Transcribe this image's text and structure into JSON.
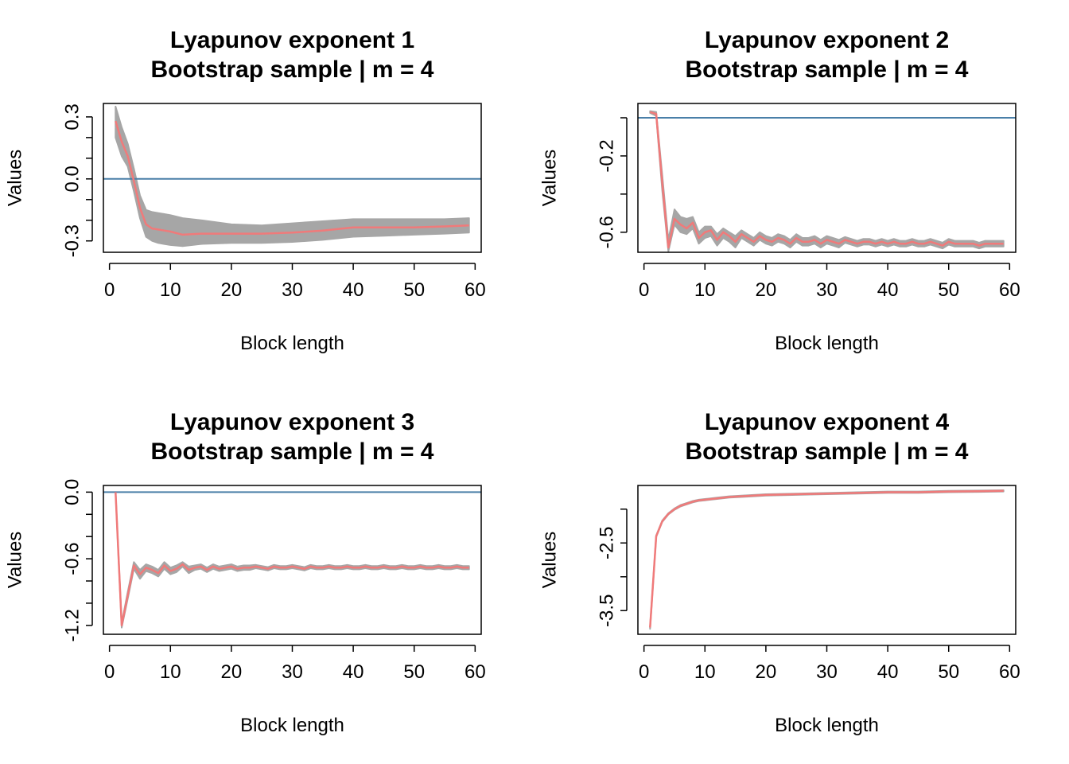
{
  "colors": {
    "bootstrap": "#a6a6a6",
    "estimate": "#f07a7a",
    "reference": "#4a7fa8",
    "frame": "#000000"
  },
  "chart_data": [
    {
      "type": "line",
      "title": "Lyapunov exponent 1",
      "subtitle": "Bootstrap sample | m = 4",
      "xlabel": "Block length",
      "ylabel": "Values",
      "xlim": [
        -1,
        61
      ],
      "ylim": [
        -0.355,
        0.365
      ],
      "xticks": [
        0,
        10,
        20,
        30,
        40,
        50,
        60
      ],
      "xtick_labels": [
        "0",
        "10",
        "20",
        "30",
        "40",
        "50",
        "60"
      ],
      "yticks": [
        -0.3,
        -0.2,
        -0.1,
        0.0,
        0.1,
        0.2,
        0.3
      ],
      "ytick_labels": [
        "-0.3",
        "",
        "",
        "0.0",
        "",
        "",
        "0.3"
      ],
      "hline": 0,
      "x": [
        1,
        2,
        3,
        4,
        5,
        6,
        7,
        8,
        9,
        10,
        12,
        15,
        20,
        25,
        30,
        35,
        40,
        45,
        50,
        55,
        59
      ],
      "series": [
        {
          "role": "estimate",
          "values": [
            0.28,
            0.18,
            0.11,
            -0.01,
            -0.14,
            -0.22,
            -0.24,
            -0.245,
            -0.25,
            -0.255,
            -0.27,
            -0.265,
            -0.265,
            -0.265,
            -0.26,
            -0.25,
            -0.235,
            -0.235,
            -0.235,
            -0.23,
            -0.225
          ]
        },
        {
          "role": "band-upper",
          "values": [
            0.35,
            0.25,
            0.17,
            0.05,
            -0.08,
            -0.15,
            -0.16,
            -0.165,
            -0.17,
            -0.175,
            -0.19,
            -0.2,
            -0.22,
            -0.225,
            -0.215,
            -0.205,
            -0.195,
            -0.195,
            -0.195,
            -0.195,
            -0.19
          ]
        },
        {
          "role": "band-lower",
          "values": [
            0.2,
            0.11,
            0.06,
            -0.06,
            -0.19,
            -0.28,
            -0.3,
            -0.31,
            -0.315,
            -0.32,
            -0.325,
            -0.315,
            -0.31,
            -0.31,
            -0.305,
            -0.295,
            -0.28,
            -0.275,
            -0.27,
            -0.265,
            -0.26
          ]
        }
      ]
    },
    {
      "type": "line",
      "title": "Lyapunov exponent 2",
      "subtitle": "Bootstrap sample | m = 4",
      "xlabel": "Block length",
      "ylabel": "Values",
      "xlim": [
        -1,
        61
      ],
      "ylim": [
        -0.705,
        0.075
      ],
      "xticks": [
        0,
        10,
        20,
        30,
        40,
        50,
        60
      ],
      "xtick_labels": [
        "0",
        "10",
        "20",
        "30",
        "40",
        "50",
        "60"
      ],
      "yticks": [
        -0.6,
        -0.4,
        -0.2,
        0.0
      ],
      "ytick_labels": [
        "-0.6",
        "",
        "-0.2",
        ""
      ],
      "hline": 0,
      "x": [
        1,
        2,
        3,
        4,
        5,
        6,
        7,
        8,
        9,
        10,
        11,
        12,
        13,
        14,
        15,
        16,
        17,
        18,
        19,
        20,
        21,
        22,
        23,
        24,
        25,
        26,
        27,
        28,
        29,
        30,
        31,
        32,
        33,
        34,
        35,
        36,
        37,
        38,
        39,
        40,
        41,
        42,
        43,
        44,
        45,
        46,
        47,
        48,
        49,
        50,
        51,
        52,
        53,
        54,
        55,
        56,
        57,
        58,
        59
      ],
      "series": [
        {
          "role": "estimate",
          "values": [
            0.03,
            0.02,
            -0.34,
            -0.68,
            -0.53,
            -0.56,
            -0.58,
            -0.55,
            -0.63,
            -0.6,
            -0.59,
            -0.64,
            -0.6,
            -0.62,
            -0.65,
            -0.61,
            -0.63,
            -0.65,
            -0.62,
            -0.64,
            -0.65,
            -0.63,
            -0.64,
            -0.66,
            -0.63,
            -0.65,
            -0.65,
            -0.64,
            -0.66,
            -0.64,
            -0.65,
            -0.66,
            -0.64,
            -0.65,
            -0.66,
            -0.65,
            -0.65,
            -0.66,
            -0.65,
            -0.66,
            -0.65,
            -0.66,
            -0.66,
            -0.65,
            -0.66,
            -0.66,
            -0.65,
            -0.66,
            -0.67,
            -0.65,
            -0.66,
            -0.66,
            -0.66,
            -0.66,
            -0.67,
            -0.66,
            -0.66,
            -0.66,
            -0.66
          ]
        },
        {
          "role": "band-upper",
          "values": [
            0.035,
            0.03,
            -0.3,
            -0.64,
            -0.48,
            -0.52,
            -0.53,
            -0.52,
            -0.6,
            -0.57,
            -0.57,
            -0.61,
            -0.58,
            -0.6,
            -0.62,
            -0.59,
            -0.61,
            -0.63,
            -0.6,
            -0.62,
            -0.63,
            -0.61,
            -0.62,
            -0.64,
            -0.61,
            -0.63,
            -0.63,
            -0.62,
            -0.64,
            -0.62,
            -0.63,
            -0.64,
            -0.625,
            -0.635,
            -0.645,
            -0.635,
            -0.635,
            -0.645,
            -0.635,
            -0.645,
            -0.635,
            -0.645,
            -0.645,
            -0.635,
            -0.645,
            -0.645,
            -0.635,
            -0.645,
            -0.655,
            -0.635,
            -0.645,
            -0.645,
            -0.645,
            -0.645,
            -0.655,
            -0.645,
            -0.645,
            -0.645,
            -0.645
          ]
        },
        {
          "role": "band-lower",
          "values": [
            0.025,
            0.01,
            -0.38,
            -0.7,
            -0.56,
            -0.6,
            -0.61,
            -0.58,
            -0.66,
            -0.63,
            -0.62,
            -0.67,
            -0.63,
            -0.65,
            -0.68,
            -0.63,
            -0.65,
            -0.67,
            -0.64,
            -0.66,
            -0.67,
            -0.65,
            -0.66,
            -0.68,
            -0.65,
            -0.67,
            -0.67,
            -0.66,
            -0.68,
            -0.66,
            -0.67,
            -0.68,
            -0.655,
            -0.665,
            -0.675,
            -0.665,
            -0.665,
            -0.675,
            -0.665,
            -0.675,
            -0.665,
            -0.675,
            -0.675,
            -0.665,
            -0.675,
            -0.675,
            -0.665,
            -0.675,
            -0.685,
            -0.665,
            -0.675,
            -0.675,
            -0.675,
            -0.675,
            -0.685,
            -0.675,
            -0.675,
            -0.675,
            -0.675
          ]
        }
      ]
    },
    {
      "type": "line",
      "title": "Lyapunov exponent 3",
      "subtitle": "Bootstrap sample | m = 4",
      "xlabel": "Block length",
      "ylabel": "Values",
      "xlim": [
        -1,
        61
      ],
      "ylim": [
        -1.28,
        0.06
      ],
      "xticks": [
        0,
        10,
        20,
        30,
        40,
        50,
        60
      ],
      "xtick_labels": [
        "0",
        "10",
        "20",
        "30",
        "40",
        "50",
        "60"
      ],
      "yticks": [
        -1.2,
        -1.0,
        -0.8,
        -0.6,
        -0.4,
        -0.2,
        0.0
      ],
      "ytick_labels": [
        "-1.2",
        "",
        "",
        "-0.6",
        "",
        "",
        "0.0"
      ],
      "hline": 0,
      "x": [
        1,
        2,
        3,
        4,
        5,
        6,
        7,
        8,
        9,
        10,
        11,
        12,
        13,
        14,
        15,
        16,
        17,
        18,
        19,
        20,
        21,
        22,
        23,
        24,
        25,
        26,
        27,
        28,
        29,
        30,
        31,
        32,
        33,
        34,
        35,
        36,
        37,
        38,
        39,
        40,
        41,
        42,
        43,
        44,
        45,
        46,
        47,
        48,
        49,
        50,
        51,
        52,
        53,
        54,
        55,
        56,
        57,
        58,
        59
      ],
      "series": [
        {
          "role": "estimate",
          "values": [
            0.0,
            -1.2,
            -0.93,
            -0.66,
            -0.74,
            -0.68,
            -0.7,
            -0.73,
            -0.66,
            -0.71,
            -0.69,
            -0.65,
            -0.7,
            -0.68,
            -0.67,
            -0.7,
            -0.67,
            -0.69,
            -0.68,
            -0.67,
            -0.69,
            -0.68,
            -0.68,
            -0.67,
            -0.68,
            -0.69,
            -0.67,
            -0.68,
            -0.68,
            -0.67,
            -0.68,
            -0.69,
            -0.67,
            -0.68,
            -0.68,
            -0.67,
            -0.68,
            -0.68,
            -0.67,
            -0.68,
            -0.68,
            -0.67,
            -0.68,
            -0.68,
            -0.67,
            -0.68,
            -0.68,
            -0.67,
            -0.68,
            -0.68,
            -0.67,
            -0.68,
            -0.68,
            -0.67,
            -0.68,
            -0.68,
            -0.67,
            -0.68,
            -0.68
          ]
        },
        {
          "role": "band-upper",
          "values": [
            0.0,
            -1.18,
            -0.9,
            -0.63,
            -0.7,
            -0.65,
            -0.67,
            -0.7,
            -0.63,
            -0.68,
            -0.66,
            -0.63,
            -0.67,
            -0.66,
            -0.65,
            -0.68,
            -0.65,
            -0.67,
            -0.66,
            -0.65,
            -0.67,
            -0.66,
            -0.66,
            -0.655,
            -0.665,
            -0.675,
            -0.655,
            -0.665,
            -0.665,
            -0.655,
            -0.665,
            -0.675,
            -0.655,
            -0.665,
            -0.665,
            -0.655,
            -0.665,
            -0.665,
            -0.655,
            -0.665,
            -0.665,
            -0.655,
            -0.665,
            -0.665,
            -0.655,
            -0.665,
            -0.665,
            -0.655,
            -0.665,
            -0.665,
            -0.655,
            -0.665,
            -0.665,
            -0.655,
            -0.665,
            -0.665,
            -0.655,
            -0.665,
            -0.665
          ]
        },
        {
          "role": "band-lower",
          "values": [
            0.0,
            -1.22,
            -0.96,
            -0.69,
            -0.78,
            -0.71,
            -0.73,
            -0.76,
            -0.69,
            -0.74,
            -0.72,
            -0.67,
            -0.73,
            -0.7,
            -0.69,
            -0.72,
            -0.69,
            -0.71,
            -0.7,
            -0.69,
            -0.71,
            -0.7,
            -0.7,
            -0.685,
            -0.695,
            -0.705,
            -0.685,
            -0.695,
            -0.695,
            -0.685,
            -0.695,
            -0.705,
            -0.685,
            -0.695,
            -0.695,
            -0.685,
            -0.695,
            -0.695,
            -0.685,
            -0.695,
            -0.695,
            -0.685,
            -0.695,
            -0.695,
            -0.685,
            -0.695,
            -0.695,
            -0.685,
            -0.695,
            -0.695,
            -0.685,
            -0.695,
            -0.695,
            -0.685,
            -0.695,
            -0.695,
            -0.685,
            -0.695,
            -0.695
          ]
        }
      ]
    },
    {
      "type": "line",
      "title": "Lyapunov exponent 4",
      "subtitle": "Bootstrap sample | m = 4",
      "xlabel": "Block length",
      "ylabel": "Values",
      "xlim": [
        -1,
        61
      ],
      "ylim": [
        -3.85,
        -1.65
      ],
      "xticks": [
        0,
        10,
        20,
        30,
        40,
        50,
        60
      ],
      "xtick_labels": [
        "0",
        "10",
        "20",
        "30",
        "40",
        "50",
        "60"
      ],
      "yticks": [
        -3.5,
        -3.0,
        -2.5,
        -2.0
      ],
      "ytick_labels": [
        "-3.5",
        "",
        "-2.5",
        ""
      ],
      "hline": null,
      "x": [
        1,
        2,
        3,
        4,
        5,
        6,
        7,
        8,
        9,
        10,
        12,
        14,
        16,
        18,
        20,
        25,
        30,
        35,
        40,
        45,
        50,
        55,
        59
      ],
      "series": [
        {
          "role": "estimate",
          "values": [
            -3.75,
            -2.4,
            -2.18,
            -2.07,
            -2.0,
            -1.95,
            -1.92,
            -1.89,
            -1.87,
            -1.86,
            -1.84,
            -1.82,
            -1.81,
            -1.8,
            -1.79,
            -1.78,
            -1.77,
            -1.76,
            -1.75,
            -1.75,
            -1.74,
            -1.735,
            -1.73
          ]
        },
        {
          "role": "band-upper",
          "values": [
            -3.74,
            -2.39,
            -2.17,
            -2.06,
            -1.99,
            -1.94,
            -1.91,
            -1.88,
            -1.86,
            -1.85,
            -1.83,
            -1.81,
            -1.8,
            -1.79,
            -1.78,
            -1.77,
            -1.76,
            -1.75,
            -1.74,
            -1.74,
            -1.73,
            -1.725,
            -1.72
          ]
        },
        {
          "role": "band-lower",
          "values": [
            -3.77,
            -2.41,
            -2.19,
            -2.08,
            -2.01,
            -1.96,
            -1.93,
            -1.9,
            -1.88,
            -1.87,
            -1.85,
            -1.83,
            -1.82,
            -1.81,
            -1.8,
            -1.79,
            -1.78,
            -1.77,
            -1.76,
            -1.76,
            -1.75,
            -1.745,
            -1.74
          ]
        }
      ]
    }
  ]
}
